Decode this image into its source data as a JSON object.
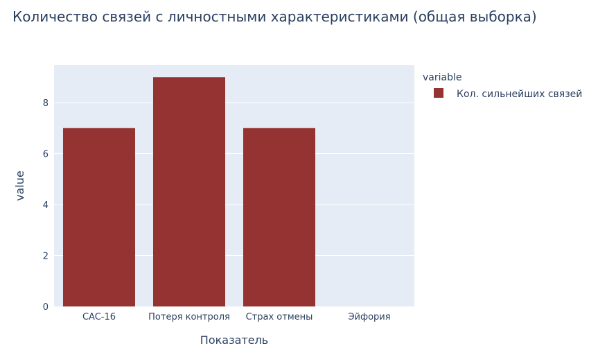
{
  "chart_data": {
    "type": "bar",
    "title": "Количество связей с личностными характеристиками (общая выборка)",
    "xlabel": "Показатель",
    "ylabel": "value",
    "categories": [
      "CAC-16",
      "Потеря контроля",
      "Страх отмены",
      "Эйфория"
    ],
    "series": [
      {
        "name": "Кол. сильнейших связей",
        "values": [
          7,
          9,
          7,
          0
        ],
        "color": "#943331"
      }
    ],
    "ylim": [
      0,
      9.47
    ],
    "yticks": [
      0,
      2,
      4,
      6,
      8
    ],
    "grid": true,
    "legend": {
      "title": "variable",
      "placement": "right"
    },
    "colors": {
      "plot_background": "#e5ecf6",
      "gridline": "#ffffff",
      "text": "#2a3f5f"
    }
  }
}
